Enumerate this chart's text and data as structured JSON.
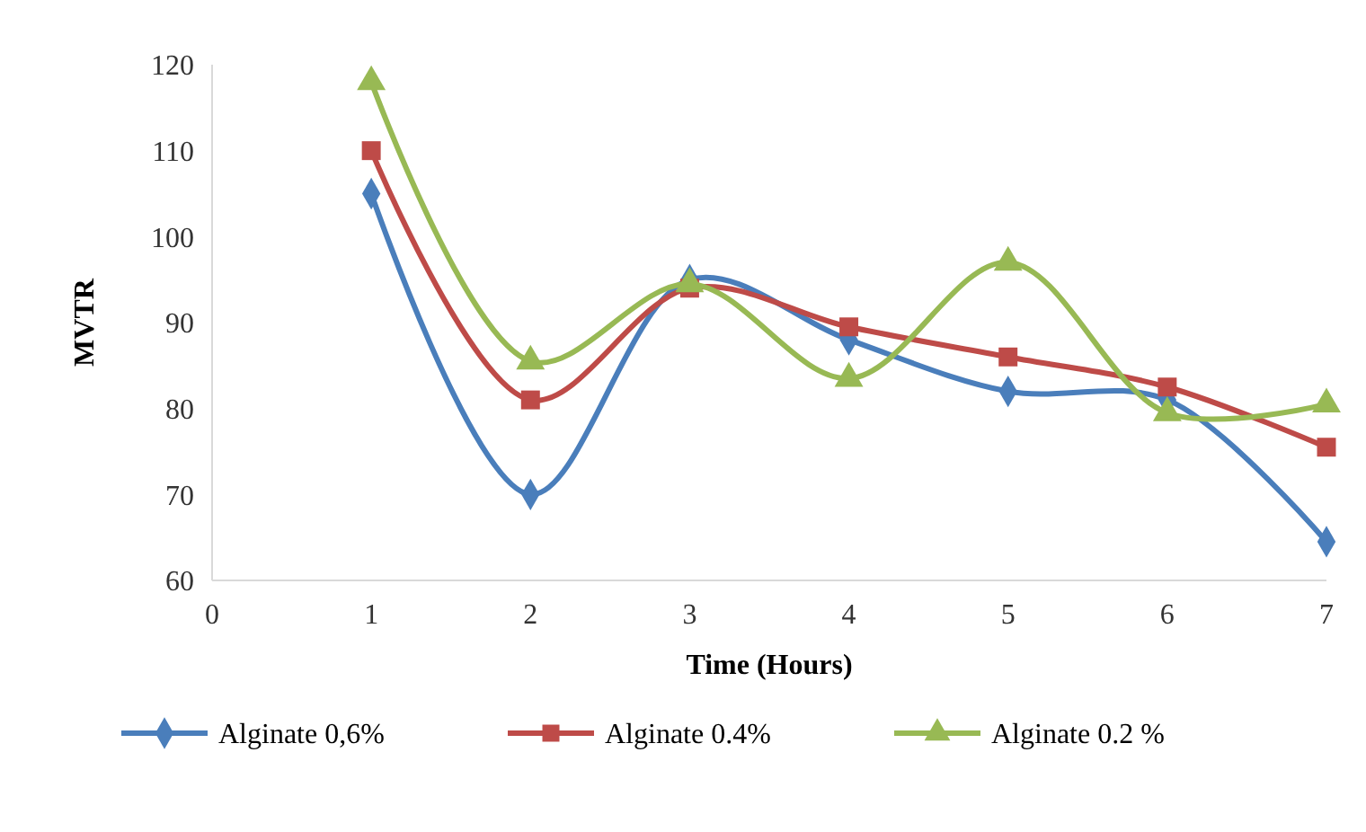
{
  "chart_data": {
    "type": "line",
    "xlabel": "Time (Hours)",
    "ylabel": "MVTR",
    "x": [
      1,
      2,
      3,
      4,
      5,
      6,
      7
    ],
    "xlim": [
      0,
      7
    ],
    "xticks": [
      0,
      1,
      2,
      3,
      4,
      5,
      6,
      7
    ],
    "ylim": [
      60,
      120
    ],
    "yticks": [
      60,
      70,
      80,
      90,
      100,
      110,
      120
    ],
    "grid": false,
    "legend": "bottom",
    "line_style": "solid",
    "series": [
      {
        "name": "Alginate 0,6%",
        "color": "#4a7ebb",
        "marker": "diamond",
        "values": [
          105,
          70,
          95,
          88,
          82,
          81,
          64.5
        ]
      },
      {
        "name": "Alginate 0.4%",
        "color": "#be4b48",
        "marker": "square",
        "values": [
          110,
          81,
          94,
          89.5,
          86,
          82.5,
          75.5
        ]
      },
      {
        "name": "Alginate 0.2 %",
        "color": "#98b954",
        "marker": "triangle",
        "values": [
          118,
          85.5,
          94.5,
          83.5,
          97,
          79.5,
          80.5
        ]
      }
    ]
  }
}
